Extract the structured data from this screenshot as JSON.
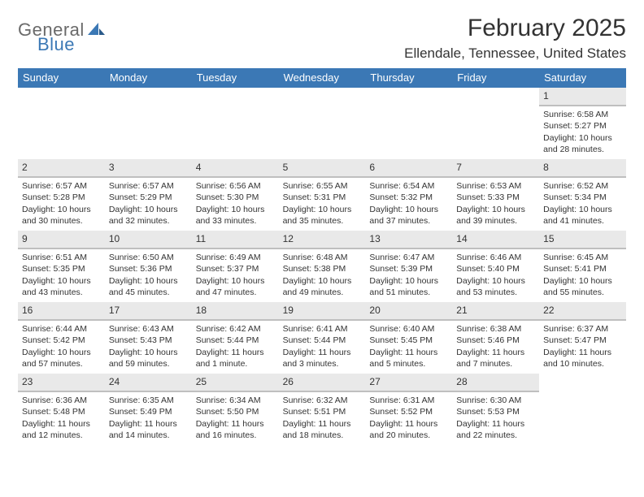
{
  "logo": {
    "text1": "General",
    "text2": "Blue"
  },
  "title": "February 2025",
  "location": "Ellendale, Tennessee, United States",
  "colors": {
    "header_bg": "#3b78b5",
    "header_text": "#ffffff",
    "daynum_bg": "#e9e9e9",
    "daynum_border": "#bfbfbf",
    "body_text": "#333333",
    "logo_gray": "#6a6a6a",
    "logo_blue": "#3b78b5",
    "page_bg": "#ffffff"
  },
  "weekdays": [
    "Sunday",
    "Monday",
    "Tuesday",
    "Wednesday",
    "Thursday",
    "Friday",
    "Saturday"
  ],
  "calendar": {
    "first_weekday_index": 6,
    "days": [
      {
        "n": 1,
        "sunrise": "6:58 AM",
        "sunset": "5:27 PM",
        "daylight": "10 hours and 28 minutes."
      },
      {
        "n": 2,
        "sunrise": "6:57 AM",
        "sunset": "5:28 PM",
        "daylight": "10 hours and 30 minutes."
      },
      {
        "n": 3,
        "sunrise": "6:57 AM",
        "sunset": "5:29 PM",
        "daylight": "10 hours and 32 minutes."
      },
      {
        "n": 4,
        "sunrise": "6:56 AM",
        "sunset": "5:30 PM",
        "daylight": "10 hours and 33 minutes."
      },
      {
        "n": 5,
        "sunrise": "6:55 AM",
        "sunset": "5:31 PM",
        "daylight": "10 hours and 35 minutes."
      },
      {
        "n": 6,
        "sunrise": "6:54 AM",
        "sunset": "5:32 PM",
        "daylight": "10 hours and 37 minutes."
      },
      {
        "n": 7,
        "sunrise": "6:53 AM",
        "sunset": "5:33 PM",
        "daylight": "10 hours and 39 minutes."
      },
      {
        "n": 8,
        "sunrise": "6:52 AM",
        "sunset": "5:34 PM",
        "daylight": "10 hours and 41 minutes."
      },
      {
        "n": 9,
        "sunrise": "6:51 AM",
        "sunset": "5:35 PM",
        "daylight": "10 hours and 43 minutes."
      },
      {
        "n": 10,
        "sunrise": "6:50 AM",
        "sunset": "5:36 PM",
        "daylight": "10 hours and 45 minutes."
      },
      {
        "n": 11,
        "sunrise": "6:49 AM",
        "sunset": "5:37 PM",
        "daylight": "10 hours and 47 minutes."
      },
      {
        "n": 12,
        "sunrise": "6:48 AM",
        "sunset": "5:38 PM",
        "daylight": "10 hours and 49 minutes."
      },
      {
        "n": 13,
        "sunrise": "6:47 AM",
        "sunset": "5:39 PM",
        "daylight": "10 hours and 51 minutes."
      },
      {
        "n": 14,
        "sunrise": "6:46 AM",
        "sunset": "5:40 PM",
        "daylight": "10 hours and 53 minutes."
      },
      {
        "n": 15,
        "sunrise": "6:45 AM",
        "sunset": "5:41 PM",
        "daylight": "10 hours and 55 minutes."
      },
      {
        "n": 16,
        "sunrise": "6:44 AM",
        "sunset": "5:42 PM",
        "daylight": "10 hours and 57 minutes."
      },
      {
        "n": 17,
        "sunrise": "6:43 AM",
        "sunset": "5:43 PM",
        "daylight": "10 hours and 59 minutes."
      },
      {
        "n": 18,
        "sunrise": "6:42 AM",
        "sunset": "5:44 PM",
        "daylight": "11 hours and 1 minute."
      },
      {
        "n": 19,
        "sunrise": "6:41 AM",
        "sunset": "5:44 PM",
        "daylight": "11 hours and 3 minutes."
      },
      {
        "n": 20,
        "sunrise": "6:40 AM",
        "sunset": "5:45 PM",
        "daylight": "11 hours and 5 minutes."
      },
      {
        "n": 21,
        "sunrise": "6:38 AM",
        "sunset": "5:46 PM",
        "daylight": "11 hours and 7 minutes."
      },
      {
        "n": 22,
        "sunrise": "6:37 AM",
        "sunset": "5:47 PM",
        "daylight": "11 hours and 10 minutes."
      },
      {
        "n": 23,
        "sunrise": "6:36 AM",
        "sunset": "5:48 PM",
        "daylight": "11 hours and 12 minutes."
      },
      {
        "n": 24,
        "sunrise": "6:35 AM",
        "sunset": "5:49 PM",
        "daylight": "11 hours and 14 minutes."
      },
      {
        "n": 25,
        "sunrise": "6:34 AM",
        "sunset": "5:50 PM",
        "daylight": "11 hours and 16 minutes."
      },
      {
        "n": 26,
        "sunrise": "6:32 AM",
        "sunset": "5:51 PM",
        "daylight": "11 hours and 18 minutes."
      },
      {
        "n": 27,
        "sunrise": "6:31 AM",
        "sunset": "5:52 PM",
        "daylight": "11 hours and 20 minutes."
      },
      {
        "n": 28,
        "sunrise": "6:30 AM",
        "sunset": "5:53 PM",
        "daylight": "11 hours and 22 minutes."
      }
    ]
  },
  "labels": {
    "sunrise": "Sunrise:",
    "sunset": "Sunset:",
    "daylight": "Daylight:"
  }
}
